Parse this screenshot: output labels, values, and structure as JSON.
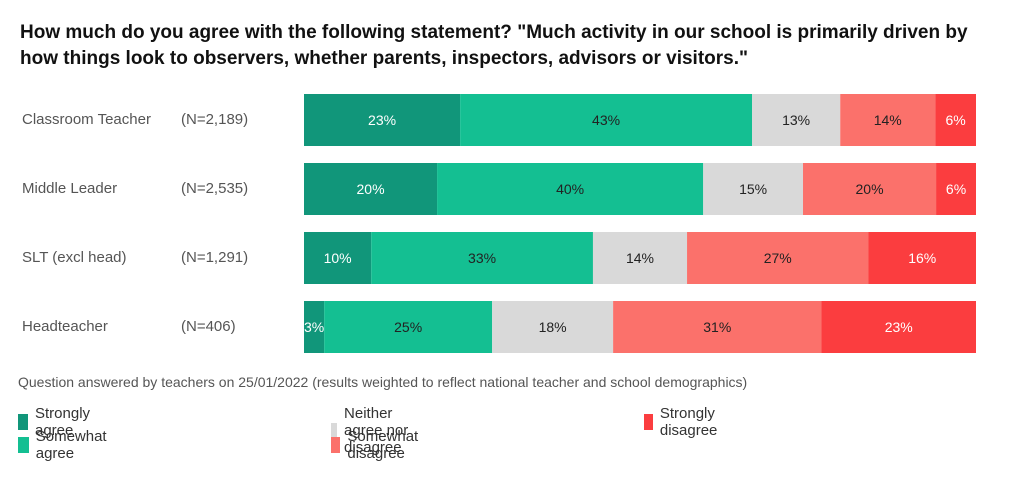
{
  "chart_data": {
    "type": "bar",
    "orientation": "horizontal",
    "stacked": true,
    "title": "How much do you agree with the following statement? \"Much activity in our school is primarily driven by how things look to observers, whether parents, inspectors, advisors or visitors.\"",
    "categories": [
      "Classroom Teacher",
      "Middle Leader",
      "SLT (excl head)",
      "Headteacher"
    ],
    "sample_sizes": [
      "(N=2,189)",
      "(N=2,535)",
      "(N=1,291)",
      "(N=406)"
    ],
    "series": [
      {
        "name": "Strongly agree",
        "color": "#11967a",
        "text_color": "#ffffff",
        "values": [
          23,
          20,
          10,
          3
        ]
      },
      {
        "name": "Somewhat agree",
        "color": "#14bf92",
        "text_color": "#222222",
        "values": [
          43,
          40,
          33,
          25
        ]
      },
      {
        "name": "Neither agree nor disagree",
        "color": "#d9d9d9",
        "text_color": "#222222",
        "values": [
          13,
          15,
          14,
          18
        ]
      },
      {
        "name": "Somewhat disagree",
        "color": "#fb716b",
        "text_color": "#222222",
        "values": [
          14,
          20,
          27,
          31
        ]
      },
      {
        "name": "Strongly disagree",
        "color": "#fb3d3f",
        "text_color": "#ffffff",
        "values": [
          6,
          6,
          16,
          23
        ]
      }
    ],
    "value_suffix": "%",
    "legend_position": "bottom",
    "grid": false
  },
  "note": "Question answered by  teachers on 25/01/2022 (results weighted to reflect national teacher and school demographics)"
}
